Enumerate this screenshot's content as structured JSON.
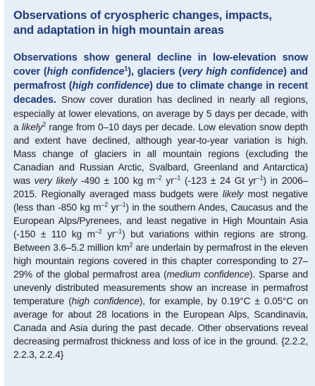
{
  "box": {
    "title_line1": "Observations of cryospheric changes, impacts,",
    "title_line2": "and adaptation in high mountain areas",
    "lead": {
      "t1": "Observations show general decline in low-elevation snow cover (",
      "t2": "high confidence",
      "t3": "1",
      "t4": "), glaciers (",
      "t5": "very high confidence",
      "t6": ") and permafrost (",
      "t7": "high confidence",
      "t8": ") due to climate change in recent decades."
    },
    "body": {
      "b1": " Snow cover duration has declined in nearly all regions, especially at lower elevations, on average by 5 days per decade, with a ",
      "b2": "likely",
      "b3": "2",
      "b4": " range from 0–10 days per decade. Low elevation snow depth and extent have declined, although year-to-year variation is high. Mass change of glaciers in all mountain regions (excluding the Canadian and Russian Arctic, Svalbard, Greenland and Antarctica) was ",
      "b5": "very likely",
      "b6": " -490 ± 100 kg m",
      "b7": "–2",
      "b8": " yr",
      "b9": "–1",
      "b10": " (-123 ± 24 Gt yr",
      "b11": "–1",
      "b12": ") in 2006–2015. Regionally averaged mass budgets were ",
      "b13": "likely",
      "b14": " most negative (less than -850 kg m",
      "b15": "–2",
      "b16": " yr",
      "b17": "–1",
      "b18": ") in the southern Andes, Caucasus and the European Alps/Pyrenees, and least negative in High Mountain Asia (-150 ± 110 kg m",
      "b19": "–2",
      "b20": " yr",
      "b21": "–1",
      "b22": ") but variations within regions are strong. Between 3.6–5.2 million km",
      "b23": "2",
      "b24": " are underlain by permafrost in the eleven high mountain regions covered in this chapter corresponding to 27–29% of the global permafrost area (",
      "b25": "medium confidence",
      "b26": "). Sparse and unevenly distributed measurements show an increase in permafrost temperature (",
      "b27": "high confidence",
      "b28": "), for example, by 0.19°C ± 0.05°C on average for about 28 locations in the European Alps, Scandinavia, Canada and Asia during the past decade. Other observations reveal decreasing permafrost thickness and loss of ice in the ground. {2.2.2, 2.2.3, 2.2.4}"
    }
  }
}
